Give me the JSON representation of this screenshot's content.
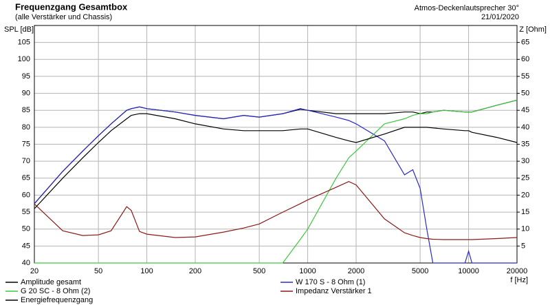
{
  "chart_data": {
    "type": "line",
    "title": "Frequenzgang Gesamtbox",
    "subtitle": "(alle Verstärker und Chassis)",
    "annotations": [
      "Atmos-Deckenlautsprecher 30°",
      "21/01/2020"
    ],
    "y_label": "SPL [dB]",
    "y2_label": "Z [Ohm]",
    "x_label": "f [Hz]",
    "log_x": true,
    "grid": true,
    "xlim": [
      20,
      20000
    ],
    "xticks": [
      20,
      50,
      100,
      200,
      500,
      1000,
      2000,
      5000,
      10000,
      20000
    ],
    "ylim": [
      40,
      110
    ],
    "yticks": [
      40,
      45,
      50,
      55,
      60,
      65,
      70,
      75,
      80,
      85,
      90,
      95,
      100,
      105
    ],
    "y2lim": [
      0,
      70
    ],
    "y2ticks": [
      5,
      10,
      15,
      20,
      25,
      30,
      35,
      40,
      45,
      50,
      55,
      60,
      65
    ],
    "x": [
      20,
      30,
      40,
      50,
      60,
      75,
      80,
      90,
      100,
      150,
      200,
      300,
      400,
      500,
      700,
      900,
      1000,
      1500,
      1800,
      2000,
      3000,
      4000,
      4500,
      5000,
      5500,
      6000,
      7000,
      9500,
      10000,
      10500,
      15000,
      20000
    ],
    "series": [
      {
        "name": "Amplitude gesamt",
        "color": "#000000",
        "values": [
          57.5,
          67,
          73,
          77.5,
          81,
          85,
          85.5,
          86,
          85.5,
          84.5,
          83.5,
          82.5,
          83.5,
          83,
          84,
          85.3,
          85,
          84,
          84,
          84,
          84,
          84.5,
          84.5,
          84,
          84.5,
          84.5,
          85,
          84.5,
          84.5,
          84.5,
          86.5,
          88
        ]
      },
      {
        "name": "W 170 S - 8 Ohm (1)",
        "color": "#2828c8",
        "values": [
          57.5,
          67,
          73,
          77.5,
          81,
          85,
          85.5,
          86,
          85.5,
          84.5,
          83.5,
          82.5,
          83.5,
          83,
          84,
          85.5,
          85,
          83,
          82,
          81,
          76,
          66,
          67.5,
          62,
          50,
          40,
          40,
          40,
          43.5,
          40,
          40,
          40
        ]
      },
      {
        "name": "G 20 SC - 8 Ohm (2)",
        "color": "#3cc83c",
        "values": [
          40,
          40,
          40,
          40,
          40,
          40,
          40,
          40,
          40,
          40,
          40,
          40,
          40,
          40,
          40,
          47,
          50,
          65,
          71,
          73,
          81,
          82.5,
          83.5,
          84,
          84,
          84.5,
          85,
          84.5,
          84.5,
          84.5,
          86.5,
          88
        ]
      },
      {
        "name": "Impedanz Verstärker 1",
        "color": "#8b1a1a",
        "axis": "y2",
        "values": [
          17.4,
          9.5,
          8.1,
          8.3,
          9.5,
          16.6,
          15.5,
          9.3,
          8.5,
          7.5,
          7.7,
          9.1,
          10.3,
          11.5,
          15,
          17.5,
          18.6,
          22.3,
          24,
          23,
          13,
          8.9,
          8.1,
          7.5,
          7.2,
          7,
          6.9,
          6.9,
          6.9,
          6.9,
          7.2,
          7.5
        ]
      },
      {
        "name": "Energiefrequenzgang",
        "color": "#000000",
        "values": [
          56,
          65,
          71,
          75.5,
          79,
          82.5,
          83.5,
          84,
          84,
          82.5,
          81,
          79.5,
          79,
          79,
          79,
          79.5,
          79.5,
          77,
          76,
          75.5,
          78,
          80,
          80,
          80,
          80,
          79.8,
          79.5,
          79,
          79,
          78.5,
          77,
          75.5
        ]
      }
    ]
  }
}
